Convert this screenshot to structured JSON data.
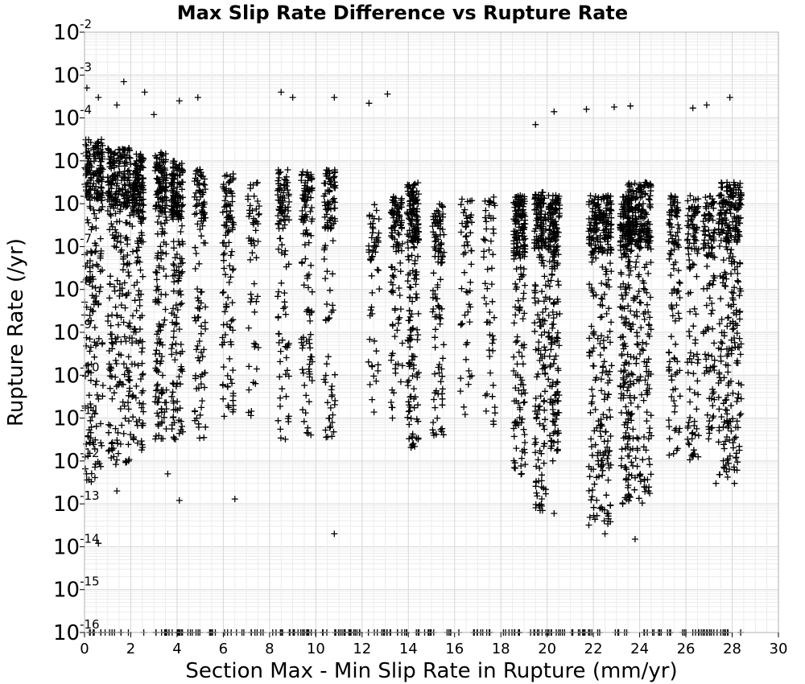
{
  "chart_data": {
    "type": "scatter",
    "title": "Max Slip Rate Difference vs Rupture Rate",
    "xlabel": "Section Max - Min Slip Rate in Rupture (mm/yr)",
    "ylabel": "Rupture Rate (/yr)",
    "xlim": [
      0,
      30
    ],
    "ylim": [
      1e-16,
      0.01
    ],
    "yscale": "log",
    "grid": true,
    "marker": "+",
    "marker_color": "#000000",
    "xticks": [
      "0",
      "2",
      "4",
      "6",
      "8",
      "10",
      "12",
      "14",
      "16",
      "18",
      "20",
      "22",
      "24",
      "26",
      "28",
      "30"
    ],
    "yticks": [
      {
        "base": "10",
        "exp": "-2"
      },
      {
        "base": "10",
        "exp": "-3"
      },
      {
        "base": "10",
        "exp": "-4"
      },
      {
        "base": "10",
        "exp": "-5"
      },
      {
        "base": "10",
        "exp": "-6"
      },
      {
        "base": "10",
        "exp": "-7"
      },
      {
        "base": "10",
        "exp": "-8"
      },
      {
        "base": "10",
        "exp": "-9"
      },
      {
        "base": "10",
        "exp": "-10"
      },
      {
        "base": "10",
        "exp": "-11"
      },
      {
        "base": "10",
        "exp": "-12"
      },
      {
        "base": "10",
        "exp": "-13"
      },
      {
        "base": "10",
        "exp": "-14"
      },
      {
        "base": "10",
        "exp": "-15"
      },
      {
        "base": "10",
        "exp": "-16"
      }
    ],
    "point_clusters": [
      {
        "x": 0.3,
        "log10_y_range": [
          -12.5,
          -4.5
        ],
        "density": "very_high"
      },
      {
        "x": 1.5,
        "log10_y_range": [
          -12.2,
          -4.7
        ],
        "density": "very_high"
      },
      {
        "x": 2.3,
        "log10_y_range": [
          -11.8,
          -4.8
        ],
        "density": "high"
      },
      {
        "x": 3.3,
        "log10_y_range": [
          -11.5,
          -4.8
        ],
        "density": "high"
      },
      {
        "x": 4.0,
        "log10_y_range": [
          -11.5,
          -5.0
        ],
        "density": "high"
      },
      {
        "x": 5.0,
        "log10_y_range": [
          -11.5,
          -5.2
        ],
        "density": "medium"
      },
      {
        "x": 6.2,
        "log10_y_range": [
          -11.0,
          -5.3
        ],
        "density": "medium"
      },
      {
        "x": 7.3,
        "log10_y_range": [
          -11.0,
          -5.5
        ],
        "density": "low"
      },
      {
        "x": 8.6,
        "log10_y_range": [
          -11.5,
          -5.2
        ],
        "density": "medium"
      },
      {
        "x": 9.6,
        "log10_y_range": [
          -11.5,
          -5.2
        ],
        "density": "medium"
      },
      {
        "x": 10.6,
        "log10_y_range": [
          -11.5,
          -5.2
        ],
        "density": "medium"
      },
      {
        "x": 12.5,
        "log10_y_range": [
          -11.0,
          -6.0
        ],
        "density": "low"
      },
      {
        "x": 13.5,
        "log10_y_range": [
          -11.0,
          -5.8
        ],
        "density": "medium"
      },
      {
        "x": 14.2,
        "log10_y_range": [
          -11.8,
          -5.5
        ],
        "density": "high"
      },
      {
        "x": 15.3,
        "log10_y_range": [
          -11.5,
          -6.0
        ],
        "density": "medium"
      },
      {
        "x": 16.5,
        "log10_y_range": [
          -11.0,
          -5.8
        ],
        "density": "low"
      },
      {
        "x": 17.5,
        "log10_y_range": [
          -11.2,
          -5.8
        ],
        "density": "low"
      },
      {
        "x": 18.8,
        "log10_y_range": [
          -12.5,
          -5.8
        ],
        "density": "high"
      },
      {
        "x": 19.7,
        "log10_y_range": [
          -13.2,
          -5.7
        ],
        "density": "high"
      },
      {
        "x": 20.3,
        "log10_y_range": [
          -12.0,
          -5.8
        ],
        "density": "high"
      },
      {
        "x": 22.3,
        "log10_y_range": [
          -13.5,
          -5.8
        ],
        "density": "very_high"
      },
      {
        "x": 23.4,
        "log10_y_range": [
          -13.0,
          -5.8
        ],
        "density": "high"
      },
      {
        "x": 24.0,
        "log10_y_range": [
          -13.0,
          -5.5
        ],
        "density": "very_high"
      },
      {
        "x": 25.5,
        "log10_y_range": [
          -12.0,
          -5.8
        ],
        "density": "medium"
      },
      {
        "x": 26.3,
        "log10_y_range": [
          -12.0,
          -5.8
        ],
        "density": "medium"
      },
      {
        "x": 27.0,
        "log10_y_range": [
          -11.5,
          -5.8
        ],
        "density": "medium"
      },
      {
        "x": 27.9,
        "log10_y_range": [
          -12.5,
          -5.5
        ],
        "density": "very_high"
      }
    ],
    "floor_points": {
      "x_range": [
        0,
        28.4
      ],
      "log10_y": -16,
      "count": 220
    },
    "upper_scatter": [
      {
        "x": 0.1,
        "y": 0.0005
      },
      {
        "x": 0.6,
        "y": 0.0003
      },
      {
        "x": 1.4,
        "y": 0.0002
      },
      {
        "x": 1.7,
        "y": 0.0007
      },
      {
        "x": 2.6,
        "y": 0.0004
      },
      {
        "x": 3.0,
        "y": 0.00012
      },
      {
        "x": 4.1,
        "y": 0.00025
      },
      {
        "x": 4.9,
        "y": 0.0003
      },
      {
        "x": 8.5,
        "y": 0.0004
      },
      {
        "x": 9.0,
        "y": 0.0003
      },
      {
        "x": 10.8,
        "y": 0.0003
      },
      {
        "x": 12.3,
        "y": 0.00022
      },
      {
        "x": 13.1,
        "y": 0.00036
      },
      {
        "x": 19.5,
        "y": 7e-05
      },
      {
        "x": 20.3,
        "y": 0.00014
      },
      {
        "x": 21.7,
        "y": 0.00016
      },
      {
        "x": 22.9,
        "y": 0.00018
      },
      {
        "x": 23.6,
        "y": 0.00019
      },
      {
        "x": 26.3,
        "y": 0.00017
      },
      {
        "x": 26.9,
        "y": 0.0002
      },
      {
        "x": 27.9,
        "y": 0.0003
      }
    ],
    "lower_scatter": [
      {
        "x": 0.6,
        "y": 1.2e-14
      },
      {
        "x": 1.4,
        "y": 2e-13
      },
      {
        "x": 3.6,
        "y": 5e-13
      },
      {
        "x": 4.1,
        "y": 1.2e-13
      },
      {
        "x": 6.5,
        "y": 1.3e-13
      },
      {
        "x": 10.8,
        "y": 2e-14
      },
      {
        "x": 19.7,
        "y": 7e-14
      },
      {
        "x": 20.3,
        "y": 6e-14
      },
      {
        "x": 22.5,
        "y": 2e-14
      },
      {
        "x": 23.8,
        "y": 1.5e-14
      },
      {
        "x": 24.2,
        "y": 2.5e-13
      },
      {
        "x": 27.3,
        "y": 3e-13
      },
      {
        "x": 28.1,
        "y": 3e-13
      }
    ]
  }
}
